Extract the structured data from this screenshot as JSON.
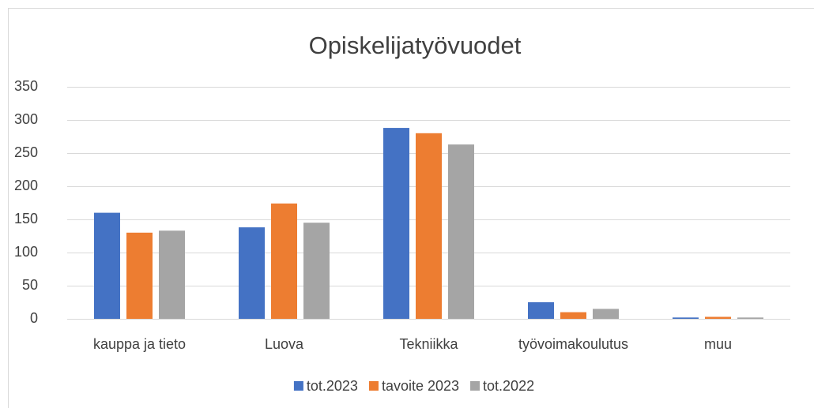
{
  "chart_data": {
    "type": "bar",
    "title": "Opiskelijatyövuodet",
    "categories": [
      "kauppa ja tieto",
      "Luova",
      "Tekniikka",
      "työvoimakoulutus",
      "muu"
    ],
    "series": [
      {
        "name": "tot.2023",
        "color": "#4472c4",
        "values": [
          160,
          138,
          288,
          25,
          2
        ]
      },
      {
        "name": "tavoite 2023",
        "color": "#ed7d31",
        "values": [
          130,
          174,
          280,
          10,
          3
        ]
      },
      {
        "name": "tot.2022",
        "color": "#a5a5a5",
        "values": [
          133,
          145,
          263,
          15,
          2
        ]
      }
    ],
    "ylim": [
      0,
      350
    ],
    "yticks": [
      0,
      50,
      100,
      150,
      200,
      250,
      300,
      350
    ],
    "grid": true,
    "legend": "bottom"
  }
}
